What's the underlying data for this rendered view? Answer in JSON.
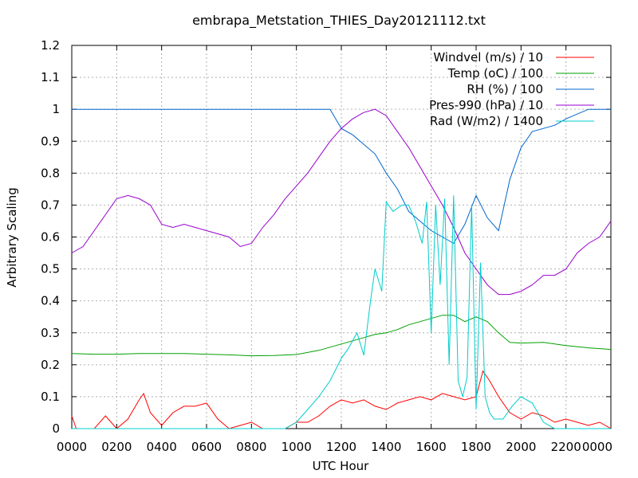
{
  "chart_data": {
    "type": "line",
    "title": "embrapa_Metstation_THIES_Day20121112.txt",
    "xlabel": "UTC Hour",
    "ylabel": "Arbitrary Scaling",
    "xlim": [
      0,
      24
    ],
    "ylim": [
      0,
      1.2
    ],
    "grid": true,
    "legend_position": "top-right",
    "x_ticks": [
      "0000",
      "0200",
      "0400",
      "0600",
      "0800",
      "1000",
      "1200",
      "1400",
      "1600",
      "1800",
      "2000",
      "2200",
      "0000"
    ],
    "y_ticks": [
      "0",
      "0.1",
      "0.2",
      "0.3",
      "0.4",
      "0.5",
      "0.6",
      "0.7",
      "0.8",
      "0.9",
      "1",
      "1.1",
      "1.2"
    ],
    "series": [
      {
        "name": "Windvel (m/s) / 10",
        "color": "#ff0000",
        "x": [
          0,
          0.2,
          0.5,
          1.0,
          1.5,
          2.0,
          2.5,
          3.0,
          3.2,
          3.5,
          4.0,
          4.5,
          5.0,
          5.5,
          6.0,
          6.5,
          7.0,
          7.5,
          8.0,
          8.5,
          9.0,
          9.5,
          10.0,
          10.5,
          11.0,
          11.5,
          12.0,
          12.5,
          13.0,
          13.5,
          14.0,
          14.5,
          15.0,
          15.5,
          16.0,
          16.5,
          17.0,
          17.5,
          18.0,
          18.3,
          18.6,
          19.0,
          19.5,
          20.0,
          20.5,
          21.0,
          21.5,
          22.0,
          22.5,
          23.0,
          23.5,
          24.0
        ],
        "y": [
          0.04,
          0.0,
          0.0,
          0.0,
          0.04,
          0.0,
          0.03,
          0.09,
          0.11,
          0.05,
          0.01,
          0.05,
          0.07,
          0.07,
          0.08,
          0.03,
          0.0,
          0.01,
          0.02,
          0.0,
          0.0,
          0.0,
          0.02,
          0.02,
          0.04,
          0.07,
          0.09,
          0.08,
          0.09,
          0.07,
          0.06,
          0.08,
          0.09,
          0.1,
          0.09,
          0.11,
          0.1,
          0.09,
          0.1,
          0.18,
          0.15,
          0.1,
          0.05,
          0.03,
          0.05,
          0.04,
          0.02,
          0.03,
          0.02,
          0.01,
          0.02,
          0.0
        ]
      },
      {
        "name": "Temp (oC) / 100",
        "color": "#00a000",
        "x": [
          0,
          1,
          2,
          3,
          4,
          5,
          6,
          7,
          8,
          9,
          10,
          11,
          12,
          12.5,
          13,
          13.5,
          14,
          14.5,
          15,
          15.5,
          16,
          16.5,
          17,
          17.5,
          18,
          18.5,
          19,
          19.5,
          20,
          21,
          22,
          23,
          24
        ],
        "y": [
          0.235,
          0.233,
          0.233,
          0.235,
          0.235,
          0.235,
          0.233,
          0.231,
          0.228,
          0.229,
          0.232,
          0.245,
          0.265,
          0.275,
          0.285,
          0.295,
          0.3,
          0.31,
          0.325,
          0.335,
          0.345,
          0.355,
          0.355,
          0.335,
          0.35,
          0.335,
          0.3,
          0.27,
          0.268,
          0.27,
          0.26,
          0.253,
          0.248
        ]
      },
      {
        "name": "RH (%) / 100",
        "color": "#0066cc",
        "x": [
          0,
          2,
          4,
          6,
          8,
          10,
          11,
          11.5,
          12,
          12.5,
          13,
          13.5,
          14,
          14.5,
          15,
          15.5,
          16,
          16.5,
          17,
          17.5,
          18,
          18.5,
          19,
          19.5,
          20,
          20.5,
          21,
          21.5,
          22,
          23,
          24
        ],
        "y": [
          1.0,
          1.0,
          1.0,
          1.0,
          1.0,
          1.0,
          1.0,
          1.0,
          0.94,
          0.92,
          0.89,
          0.86,
          0.8,
          0.75,
          0.68,
          0.65,
          0.62,
          0.6,
          0.58,
          0.64,
          0.73,
          0.66,
          0.62,
          0.78,
          0.88,
          0.93,
          0.94,
          0.95,
          0.97,
          1.0,
          1.0
        ]
      },
      {
        "name": "Pres-990 (hPa) / 10",
        "color": "#9900cc",
        "x": [
          0,
          0.5,
          1,
          1.5,
          2,
          2.5,
          3,
          3.5,
          4,
          4.5,
          5,
          5.5,
          6,
          6.5,
          7,
          7.5,
          8,
          8.5,
          9,
          9.5,
          10,
          10.5,
          11,
          11.5,
          12,
          12.5,
          13,
          13.5,
          14,
          14.5,
          15,
          15.5,
          16,
          16.5,
          17,
          17.5,
          18,
          18.5,
          19,
          19.5,
          20,
          20.5,
          21,
          21.5,
          22,
          22.5,
          23,
          23.5,
          24
        ],
        "y": [
          0.55,
          0.57,
          0.62,
          0.67,
          0.72,
          0.73,
          0.72,
          0.7,
          0.64,
          0.63,
          0.64,
          0.63,
          0.62,
          0.61,
          0.6,
          0.57,
          0.58,
          0.63,
          0.67,
          0.72,
          0.76,
          0.8,
          0.85,
          0.9,
          0.94,
          0.97,
          0.99,
          1.0,
          0.98,
          0.93,
          0.88,
          0.82,
          0.76,
          0.7,
          0.63,
          0.55,
          0.5,
          0.45,
          0.42,
          0.42,
          0.43,
          0.45,
          0.48,
          0.48,
          0.5,
          0.55,
          0.58,
          0.6,
          0.65
        ]
      },
      {
        "name": "Rad (W/m2) / 1400",
        "color": "#00cccc",
        "x": [
          0,
          9,
          9.5,
          10,
          10.5,
          11,
          11.5,
          12,
          12.3,
          12.7,
          13,
          13.3,
          13.5,
          13.8,
          14,
          14.3,
          14.7,
          15,
          15.3,
          15.6,
          15.8,
          16,
          16.2,
          16.4,
          16.6,
          16.8,
          17,
          17.2,
          17.4,
          17.6,
          17.8,
          18,
          18.2,
          18.4,
          18.6,
          18.8,
          19,
          19.2,
          19.4,
          19.6,
          20,
          20.5,
          21,
          21.5,
          24
        ],
        "y": [
          0.0,
          0.0,
          0.0,
          0.02,
          0.06,
          0.1,
          0.15,
          0.22,
          0.25,
          0.3,
          0.23,
          0.4,
          0.5,
          0.43,
          0.71,
          0.68,
          0.7,
          0.7,
          0.65,
          0.58,
          0.71,
          0.3,
          0.7,
          0.45,
          0.72,
          0.2,
          0.73,
          0.15,
          0.1,
          0.16,
          0.7,
          0.06,
          0.52,
          0.1,
          0.05,
          0.03,
          0.03,
          0.03,
          0.05,
          0.07,
          0.1,
          0.08,
          0.02,
          0.0,
          0.0
        ]
      }
    ]
  }
}
